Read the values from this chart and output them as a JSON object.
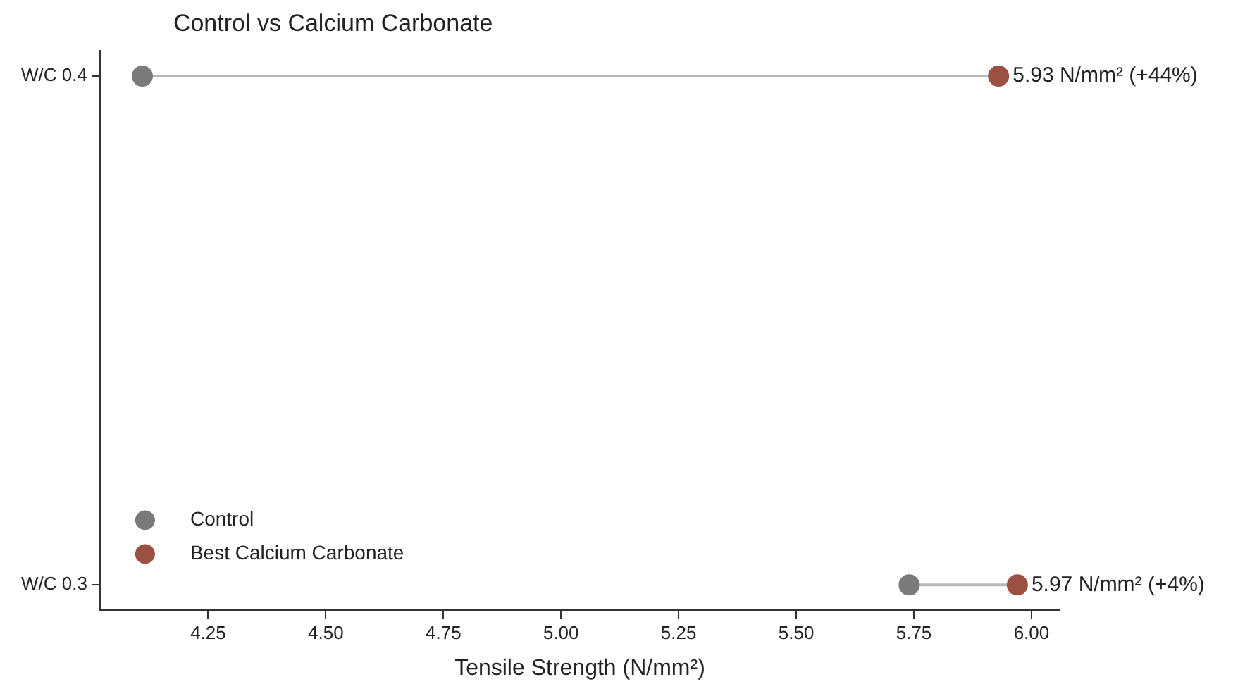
{
  "chart_data": {
    "type": "scatter",
    "title": "Control vs Calcium Carbonate",
    "xlabel": "Tensile Strength (N/mm²)",
    "orientation": "horizontal",
    "categories": [
      "W/C 0.4",
      "W/C 0.3"
    ],
    "xlim": [
      4.02,
      6.06
    ],
    "xticks": [
      4.25,
      {
        "value": 4.5,
        "label": "4.50"
      },
      4.75,
      {
        "value": 5,
        "label": "5.00"
      },
      5.25,
      {
        "value": 5.5,
        "label": "5.50"
      },
      5.75,
      {
        "value": 6,
        "label": "6.00"
      }
    ],
    "series": [
      {
        "name": "Control",
        "color": "#7a7a7a",
        "values": [
          4.11,
          5.74
        ]
      },
      {
        "name": "Best Calcium Carbonate",
        "color": "#9b5142",
        "values": [
          5.93,
          5.97
        ],
        "value_labels": [
          "5.93 N/mm² (+44%)",
          "5.97 N/mm² (+4%)"
        ]
      }
    ],
    "legend": "bottom left",
    "marker": "circle"
  }
}
